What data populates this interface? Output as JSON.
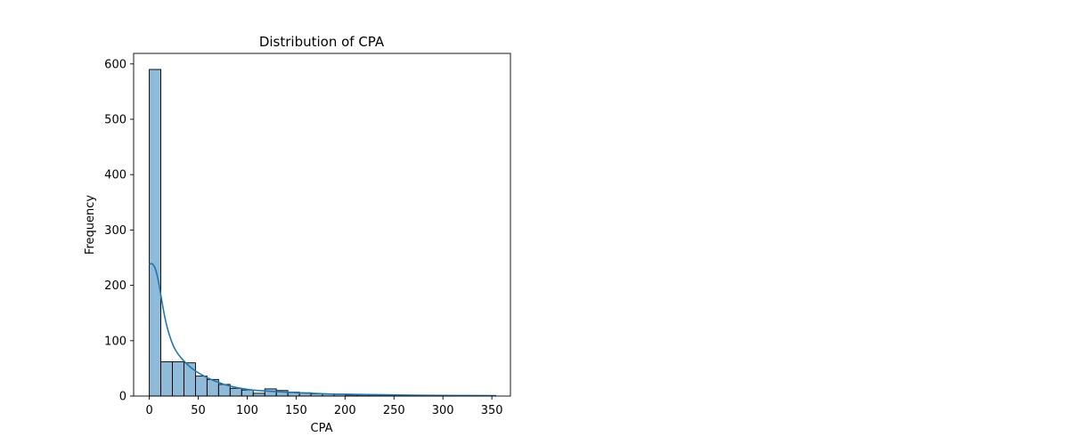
{
  "chart_data": {
    "type": "bar",
    "subtype": "histogram-with-kde",
    "title": "Distribution of CPA",
    "xlabel": "CPA",
    "ylabel": "Frequency",
    "xlim": [
      -16,
      369
    ],
    "ylim": [
      0,
      619
    ],
    "xticks": [
      0,
      50,
      100,
      150,
      200,
      250,
      300,
      350
    ],
    "yticks": [
      0,
      100,
      200,
      300,
      400,
      500,
      600
    ],
    "grid": false,
    "bins": [
      {
        "x0": 0.0,
        "x1": 11.8,
        "count": 590
      },
      {
        "x0": 11.8,
        "x1": 23.6,
        "count": 62
      },
      {
        "x0": 23.6,
        "x1": 35.4,
        "count": 62
      },
      {
        "x0": 35.4,
        "x1": 47.2,
        "count": 60
      },
      {
        "x0": 47.2,
        "x1": 59.0,
        "count": 36
      },
      {
        "x0": 59.0,
        "x1": 70.8,
        "count": 30
      },
      {
        "x0": 70.8,
        "x1": 82.6,
        "count": 21
      },
      {
        "x0": 82.6,
        "x1": 94.4,
        "count": 14
      },
      {
        "x0": 94.4,
        "x1": 106.2,
        "count": 11
      },
      {
        "x0": 106.2,
        "x1": 118.0,
        "count": 5
      },
      {
        "x0": 118.0,
        "x1": 129.8,
        "count": 13
      },
      {
        "x0": 129.8,
        "x1": 141.6,
        "count": 10
      },
      {
        "x0": 141.6,
        "x1": 153.4,
        "count": 7
      },
      {
        "x0": 153.4,
        "x1": 165.2,
        "count": 6
      },
      {
        "x0": 165.2,
        "x1": 177.0,
        "count": 4
      },
      {
        "x0": 177.0,
        "x1": 188.8,
        "count": 4
      },
      {
        "x0": 188.8,
        "x1": 200.6,
        "count": 3
      },
      {
        "x0": 200.6,
        "x1": 212.4,
        "count": 2
      },
      {
        "x0": 212.4,
        "x1": 224.2,
        "count": 2
      },
      {
        "x0": 224.2,
        "x1": 236.0,
        "count": 2
      },
      {
        "x0": 236.0,
        "x1": 247.8,
        "count": 2
      },
      {
        "x0": 247.8,
        "x1": 259.6,
        "count": 1
      },
      {
        "x0": 259.6,
        "x1": 271.4,
        "count": 1
      },
      {
        "x0": 271.4,
        "x1": 283.2,
        "count": 1
      },
      {
        "x0": 283.2,
        "x1": 295.0,
        "count": 1
      },
      {
        "x0": 295.0,
        "x1": 306.8,
        "count": 1
      },
      {
        "x0": 306.8,
        "x1": 318.6,
        "count": 1
      },
      {
        "x0": 318.6,
        "x1": 330.4,
        "count": 1
      },
      {
        "x0": 330.4,
        "x1": 342.2,
        "count": 1
      },
      {
        "x0": 342.2,
        "x1": 354.0,
        "count": 1
      }
    ],
    "kde": {
      "x": [
        0,
        3,
        6,
        9,
        12,
        16,
        20,
        25,
        30,
        35,
        40,
        45,
        50,
        60,
        70,
        80,
        90,
        100,
        110,
        120,
        130,
        140,
        150,
        170,
        190,
        210,
        230,
        250,
        270,
        290,
        310,
        330,
        354
      ],
      "y": [
        238,
        240,
        232,
        212,
        180,
        140,
        112,
        88,
        74,
        64,
        55,
        48,
        42,
        32,
        25,
        19,
        15,
        12,
        10,
        9,
        8,
        7,
        6,
        4.5,
        3.5,
        3,
        2.5,
        2,
        1.5,
        1.2,
        1,
        0.8,
        0.5
      ]
    },
    "colors": {
      "bar_fill": "#1f77b4",
      "bar_fill_opacity": 0.5,
      "bar_edge": "#000000",
      "kde_line": "#1f77b4"
    }
  }
}
